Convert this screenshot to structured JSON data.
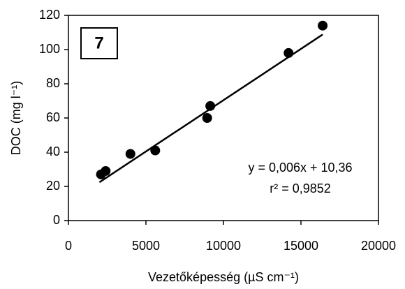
{
  "chart_data": {
    "type": "scatter",
    "panel_label": "7",
    "x_label": "Vezetőképesség (µS cm⁻¹)",
    "y_label": "DOC (mg l⁻¹)",
    "x": [
      2100,
      2400,
      4000,
      5600,
      8950,
      9150,
      14200,
      16400
    ],
    "values": [
      27,
      29,
      39,
      41,
      60,
      67,
      98,
      114
    ],
    "color": "#000000",
    "trendline": {
      "x": [
        2000,
        16400
      ],
      "y": [
        22.4,
        108.8
      ]
    },
    "equation": "y = 0,006x + 10,36",
    "r2": "r² = 0,9852",
    "xlim": [
      0,
      20000
    ],
    "xticks": [
      0,
      5000,
      10000,
      15000,
      20000
    ],
    "ylim": [
      0,
      120
    ],
    "yticks": [
      0,
      20,
      40,
      60,
      80,
      100,
      120
    ],
    "grid": false
  }
}
